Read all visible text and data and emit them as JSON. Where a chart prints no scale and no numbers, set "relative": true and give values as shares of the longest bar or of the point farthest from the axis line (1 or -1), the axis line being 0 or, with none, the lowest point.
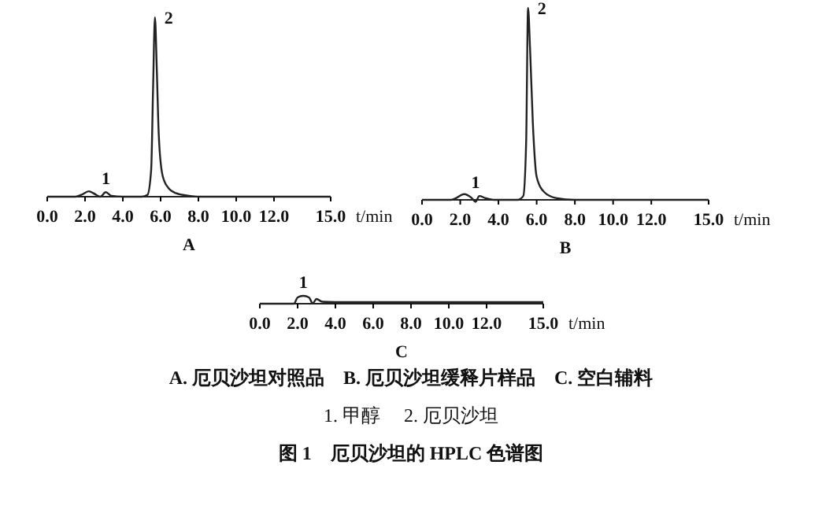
{
  "chart_data": [
    {
      "type": "line",
      "title": "A",
      "xlabel": "t/min",
      "relative": true,
      "tick_labels": "x",
      "xlim": [
        0,
        15
      ],
      "xticks": [
        {
          "value": 0,
          "label": "0.0"
        },
        {
          "value": 2,
          "label": "2.0"
        },
        {
          "value": 4,
          "label": "4.0"
        },
        {
          "value": 6,
          "label": "6.0"
        },
        {
          "value": 8,
          "label": "8.0"
        },
        {
          "value": 10,
          "label": "10.0"
        },
        {
          "value": 12,
          "label": "12.0"
        },
        {
          "value": 15,
          "label": "15.0"
        }
      ],
      "series": [
        {
          "color": "#222222",
          "x": [
            0,
            1.5,
            1.8,
            2.2,
            2.6,
            2.8,
            3.1,
            3.4,
            4.0,
            5.0,
            5.3,
            5.5,
            5.6,
            5.7,
            5.8,
            5.9,
            6.1,
            6.4,
            6.8,
            7.5,
            8,
            15
          ],
          "values": [
            0,
            0,
            0.01,
            0.03,
            0.01,
            0,
            0.025,
            0.005,
            0,
            0,
            0.01,
            0.15,
            0.6,
            1,
            0.7,
            0.35,
            0.12,
            0.05,
            0.02,
            0.005,
            0,
            0
          ]
        }
      ],
      "annotations": [
        {
          "text": "1",
          "x": 3.1,
          "y": 0.025
        },
        {
          "text": "2",
          "x": 5.7,
          "y": 1
        }
      ]
    },
    {
      "type": "line",
      "title": "B",
      "xlabel": "t/min",
      "relative": true,
      "tick_labels": "x",
      "xlim": [
        0,
        15
      ],
      "xticks": [
        {
          "value": 0,
          "label": "0.0"
        },
        {
          "value": 2,
          "label": "2.0"
        },
        {
          "value": 4,
          "label": "4.0"
        },
        {
          "value": 6,
          "label": "6.0"
        },
        {
          "value": 8,
          "label": "8.0"
        },
        {
          "value": 10,
          "label": "10.0"
        },
        {
          "value": 12,
          "label": "12.0"
        },
        {
          "value": 15,
          "label": "15.0"
        }
      ],
      "series": [
        {
          "color": "#222222",
          "x": [
            0,
            1.5,
            1.8,
            2.2,
            2.6,
            2.8,
            3.0,
            3.3,
            3.8,
            5.0,
            5.3,
            5.45,
            5.55,
            5.65,
            5.8,
            6.0,
            6.4,
            7,
            8,
            15
          ],
          "values": [
            0,
            0,
            0.01,
            0.03,
            0.01,
            -0.01,
            0.02,
            0.01,
            0,
            0,
            0.02,
            0.3,
            1,
            0.8,
            0.4,
            0.12,
            0.04,
            0.01,
            0,
            0
          ]
        }
      ],
      "annotations": [
        {
          "text": "1",
          "x": 2.8,
          "y": 0.02
        },
        {
          "text": "2",
          "x": 5.55,
          "y": 1
        }
      ]
    },
    {
      "type": "line",
      "title": "C",
      "xlabel": "t/min",
      "relative": true,
      "tick_labels": "x",
      "xlim": [
        0,
        15
      ],
      "xticks": [
        {
          "value": 0,
          "label": "0.0"
        },
        {
          "value": 2,
          "label": "2.0"
        },
        {
          "value": 4,
          "label": "4.0"
        },
        {
          "value": 6,
          "label": "6.0"
        },
        {
          "value": 8,
          "label": "8.0"
        },
        {
          "value": 10,
          "label": "10.0"
        },
        {
          "value": 12,
          "label": "12.0"
        },
        {
          "value": 15,
          "label": "15.0"
        }
      ],
      "series": [
        {
          "color": "#222222",
          "x": [
            0,
            1.8,
            2.0,
            2.3,
            2.6,
            2.8,
            3.0,
            3.3,
            4,
            15
          ],
          "values": [
            0,
            0,
            0.8,
            1,
            0.8,
            0.05,
            0.6,
            0.25,
            0.2,
            0.2
          ]
        }
      ],
      "annotations": [
        {
          "text": "1",
          "x": 2.3,
          "y": 1
        },
        "A. 厄贝沙坦对照品　B. 厄贝沙坦缓释片样品　C. 空白辅料",
        "1. 甲醇　 2. 厄贝沙坦",
        "图 1　厄贝沙坦的 HPLC 色谱图"
      ]
    }
  ]
}
